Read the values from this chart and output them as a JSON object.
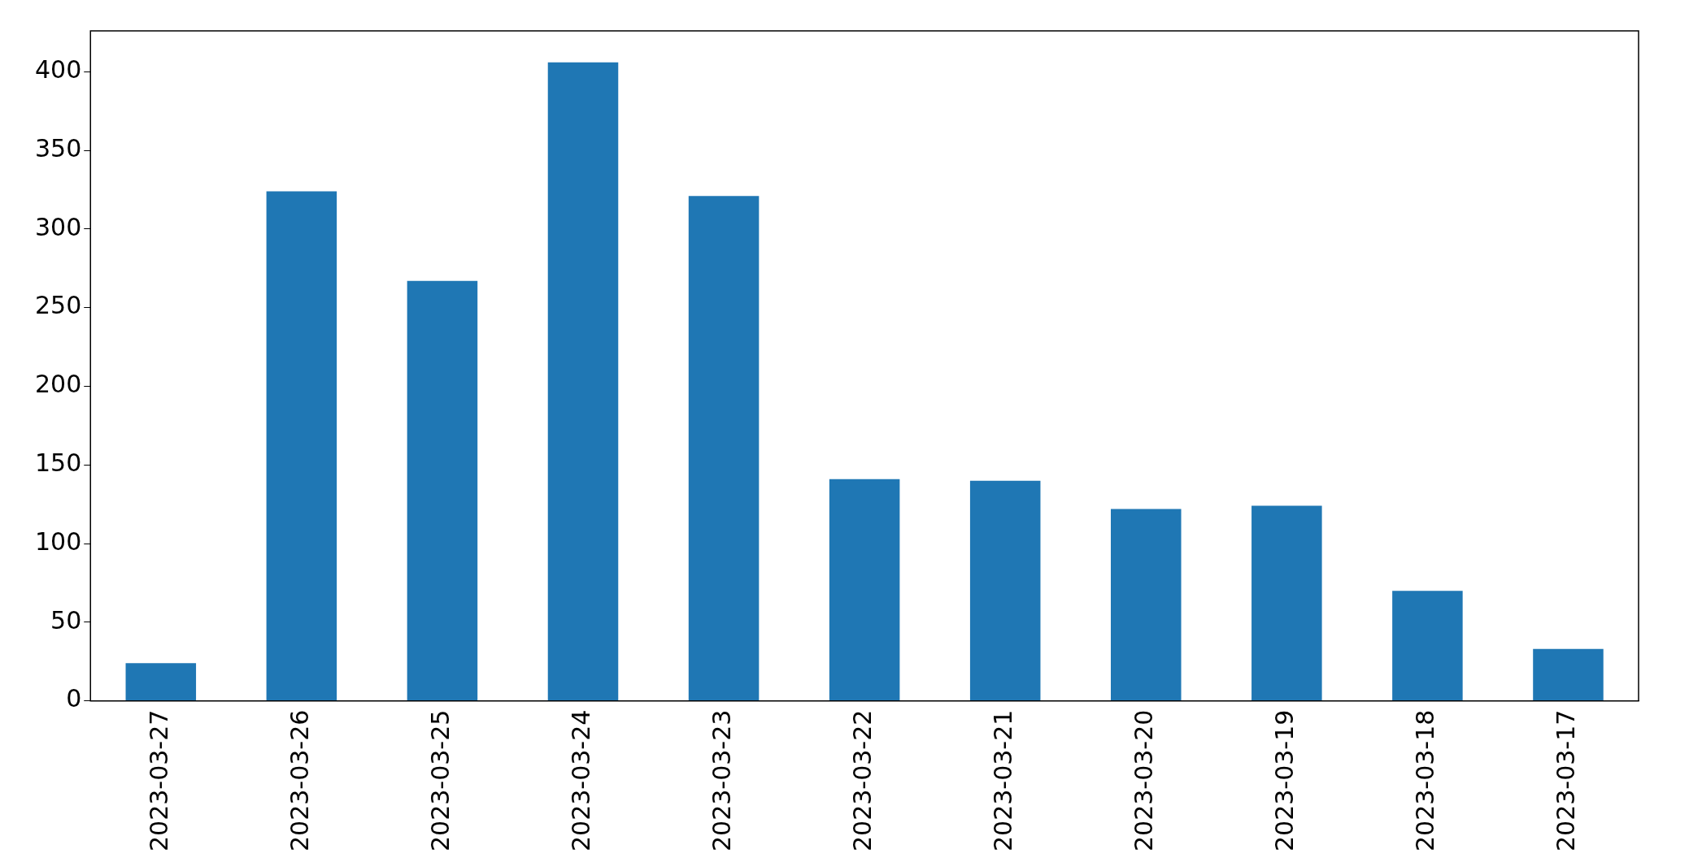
{
  "chart_data": {
    "type": "bar",
    "categories": [
      "2023-03-27",
      "2023-03-26",
      "2023-03-25",
      "2023-03-24",
      "2023-03-23",
      "2023-03-22",
      "2023-03-21",
      "2023-03-20",
      "2023-03-19",
      "2023-03-18",
      "2023-03-17"
    ],
    "values": [
      24,
      324,
      267,
      406,
      321,
      141,
      140,
      122,
      124,
      70,
      33
    ],
    "color": "#1f77b4",
    "ylim": [
      0,
      426
    ],
    "yticks": [
      0,
      50,
      100,
      150,
      200,
      250,
      300,
      350,
      400
    ],
    "grid": false,
    "legend": false
  }
}
